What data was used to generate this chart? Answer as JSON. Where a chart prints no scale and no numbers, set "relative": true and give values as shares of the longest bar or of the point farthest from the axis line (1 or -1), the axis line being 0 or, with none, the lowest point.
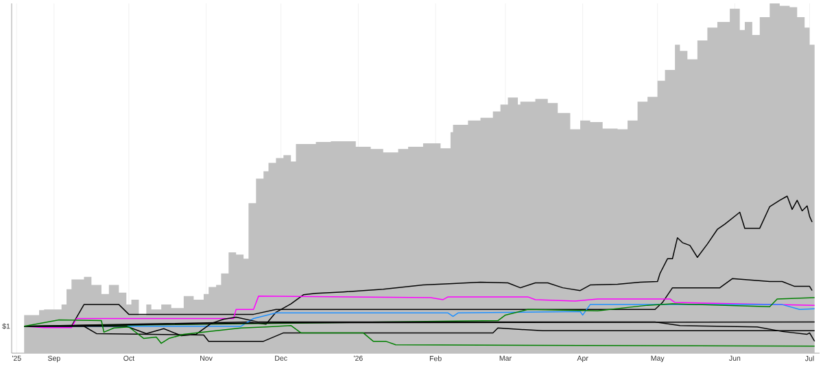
{
  "chart_data": {
    "type": "line",
    "relative": true,
    "grid": "x",
    "xlim": [
      "2025-08-15",
      "2026-07-05"
    ],
    "xticks": [
      {
        "value": "2025-08-17",
        "label": "'25"
      },
      {
        "value": "2025-09-01",
        "label": "Sep"
      },
      {
        "value": "2025-10-01",
        "label": "Oct"
      },
      {
        "value": "2025-11-01",
        "label": "Nov"
      },
      {
        "value": "2025-12-01",
        "label": "Dec"
      },
      {
        "value": "2026-01-01",
        "label": "'26"
      },
      {
        "value": "2026-02-01",
        "label": "Feb"
      },
      {
        "value": "2026-03-01",
        "label": "Mar"
      },
      {
        "value": "2026-04-01",
        "label": "Apr"
      },
      {
        "value": "2026-05-01",
        "label": "May"
      },
      {
        "value": "2026-06-01",
        "label": "Jun"
      },
      {
        "value": "2026-07-01",
        "label": "Jul"
      }
    ],
    "annotations": [
      "$1"
    ],
    "series": [
      {
        "type": "area",
        "color": "#c0c0c0",
        "x": [
          "2025-08-20",
          "2025-08-26",
          "2025-08-28",
          "2025-09-04",
          "2025-09-06",
          "2025-09-08",
          "2025-09-13",
          "2025-09-16",
          "2025-09-20",
          "2025-09-23",
          "2025-09-27",
          "2025-09-30",
          "2025-10-02",
          "2025-10-05",
          "2025-10-08",
          "2025-10-10",
          "2025-10-14",
          "2025-10-18",
          "2025-10-23",
          "2025-10-27",
          "2025-10-31",
          "2025-11-02",
          "2025-11-05",
          "2025-11-07",
          "2025-11-10",
          "2025-11-13",
          "2025-11-16",
          "2025-11-18",
          "2025-11-21",
          "2025-11-24",
          "2025-11-26",
          "2025-11-29",
          "2025-12-02",
          "2025-12-05",
          "2025-12-07",
          "2025-12-10",
          "2025-12-15",
          "2025-12-21",
          "2025-12-26",
          "2025-12-31",
          "2026-01-06",
          "2026-01-11",
          "2026-01-17",
          "2026-01-21",
          "2026-01-27",
          "2026-02-03",
          "2026-02-07",
          "2026-02-08",
          "2026-02-14",
          "2026-02-19",
          "2026-02-24",
          "2026-02-27",
          "2026-03-02",
          "2026-03-06",
          "2026-03-07",
          "2026-03-13",
          "2026-03-18",
          "2026-03-22",
          "2026-03-27",
          "2026-03-31",
          "2026-04-04",
          "2026-04-09",
          "2026-04-15",
          "2026-04-19",
          "2026-04-23",
          "2026-04-27",
          "2026-05-01",
          "2026-05-04",
          "2026-05-08",
          "2026-05-10",
          "2026-05-13",
          "2026-05-17",
          "2026-05-21",
          "2026-05-25",
          "2026-05-30",
          "2026-06-03",
          "2026-06-05",
          "2026-06-08",
          "2026-06-11",
          "2026-06-15",
          "2026-06-19",
          "2026-06-23",
          "2026-06-26",
          "2026-06-29",
          "2026-07-01",
          "2026-07-03"
        ],
        "values": [
          0.077,
          0.109,
          0.123,
          0.125,
          0.139,
          0.183,
          0.211,
          0.218,
          0.195,
          0.169,
          0.195,
          0.173,
          0.139,
          0.153,
          0.109,
          0.139,
          0.125,
          0.139,
          0.129,
          0.163,
          0.153,
          0.169,
          0.189,
          0.195,
          0.228,
          0.288,
          0.282,
          0.27,
          0.429,
          0.499,
          0.52,
          0.544,
          0.558,
          0.566,
          0.548,
          0.598,
          0.598,
          0.604,
          0.606,
          0.606,
          0.59,
          0.584,
          0.574,
          0.584,
          0.59,
          0.6,
          0.586,
          0.632,
          0.653,
          0.665,
          0.673,
          0.691,
          0.711,
          0.731,
          0.711,
          0.719,
          0.727,
          0.715,
          0.687,
          0.64,
          0.665,
          0.661,
          0.642,
          0.64,
          0.665,
          0.719,
          0.733,
          0.779,
          0.81,
          0.882,
          0.864,
          0.84,
          0.894,
          0.931,
          0.947,
          0.985,
          0.924,
          0.947,
          0.91,
          0.961,
          1,
          0.993,
          0.989,
          0.961,
          0.931,
          0.882
        ]
      },
      {
        "color": "#000000",
        "x": [
          "2025-08-20",
          "2025-11-18",
          "2025-11-25",
          "2025-11-29",
          "2025-12-05",
          "2025-12-10",
          "2025-12-15",
          "2025-12-26",
          "2026-01-11",
          "2026-01-27",
          "2026-02-08",
          "2026-02-19",
          "2026-03-02",
          "2026-03-07",
          "2026-03-13",
          "2026-03-18",
          "2026-03-24",
          "2026-03-31",
          "2026-04-04",
          "2026-04-15",
          "2026-04-24",
          "2026-05-01",
          "2026-05-02",
          "2026-05-05",
          "2026-05-07",
          "2026-05-09",
          "2026-05-11",
          "2026-05-14",
          "2026-05-17",
          "2026-05-21",
          "2026-05-25",
          "2026-05-28",
          "2026-06-03",
          "2026-06-05",
          "2026-06-11",
          "2026-06-15",
          "2026-06-19",
          "2026-06-22",
          "2026-06-24",
          "2026-06-26",
          "2026-06-28",
          "2026-06-30",
          "2026-07-01",
          "2026-07-02"
        ],
        "values": [
          0.077,
          0.089,
          0.083,
          0.117,
          0.141,
          0.167,
          0.171,
          0.175,
          0.183,
          0.195,
          0.199,
          0.203,
          0.201,
          0.187,
          0.201,
          0.201,
          0.187,
          0.179,
          0.195,
          0.197,
          0.203,
          0.205,
          0.228,
          0.27,
          0.27,
          0.33,
          0.316,
          0.308,
          0.274,
          0.312,
          0.354,
          0.369,
          0.403,
          0.357,
          0.357,
          0.419,
          0.437,
          0.449,
          0.411,
          0.437,
          0.407,
          0.421,
          0.391,
          0.375
        ]
      },
      {
        "color": "#000000",
        "x": [
          "2025-08-20",
          "2025-09-08",
          "2025-09-13",
          "2025-09-27",
          "2025-10-01",
          "2025-11-20",
          "2025-11-29",
          "2026-04-30",
          "2026-05-03",
          "2026-05-07",
          "2026-05-26",
          "2026-05-31",
          "2026-06-15",
          "2026-06-20",
          "2026-06-25",
          "2026-07-01",
          "2026-07-02"
        ],
        "values": [
          0.077,
          0.077,
          0.139,
          0.139,
          0.111,
          0.111,
          0.125,
          0.125,
          0.145,
          0.187,
          0.187,
          0.213,
          0.205,
          0.205,
          0.191,
          0.191,
          0.179
        ]
      },
      {
        "color": "#ff00ff",
        "x": [
          "2025-08-20",
          "2025-08-28",
          "2025-09-08",
          "2025-09-10",
          "2025-11-12",
          "2025-11-13",
          "2025-11-20",
          "2025-11-22",
          "2026-01-30",
          "2026-02-04",
          "2026-02-06",
          "2026-03-10",
          "2026-03-13",
          "2026-03-29",
          "2026-04-07",
          "2026-05-06",
          "2026-05-08",
          "2026-07-03"
        ],
        "values": [
          0.077,
          0.073,
          0.073,
          0.099,
          0.099,
          0.125,
          0.125,
          0.163,
          0.159,
          0.153,
          0.161,
          0.161,
          0.153,
          0.149,
          0.155,
          0.155,
          0.145,
          0.137
        ]
      },
      {
        "color": "#1e90ff",
        "x": [
          "2025-08-20",
          "2025-11-15",
          "2025-11-20",
          "2025-11-29",
          "2026-02-06",
          "2026-02-08",
          "2026-02-10",
          "2026-03-31",
          "2026-04-01",
          "2026-04-04",
          "2026-06-20",
          "2026-06-27",
          "2026-07-03"
        ],
        "values": [
          0.077,
          0.077,
          0.099,
          0.115,
          0.115,
          0.105,
          0.115,
          0.119,
          0.109,
          0.139,
          0.139,
          0.125,
          0.127
        ]
      },
      {
        "color": "#008000",
        "x": [
          "2025-08-20",
          "2026-01-11",
          "2026-02-26",
          "2026-03-01",
          "2026-03-10",
          "2026-04-07",
          "2026-04-27",
          "2026-05-07",
          "2026-06-15",
          "2026-06-18",
          "2026-07-03"
        ],
        "values": [
          0.077,
          0.089,
          0.093,
          0.109,
          0.125,
          0.121,
          0.137,
          0.141,
          0.133,
          0.155,
          0.159
        ]
      },
      {
        "color": "#000000",
        "x": [
          "2025-08-20",
          "2025-12-01",
          "2026-07-03"
        ],
        "values": [
          0.077,
          0.087,
          0.089
        ]
      },
      {
        "color": "#000000",
        "x": [
          "2025-08-20",
          "2025-09-30",
          "2025-10-08",
          "2025-10-15",
          "2025-10-22",
          "2025-10-28",
          "2025-11-03",
          "2025-11-08",
          "2025-11-13",
          "2025-11-22",
          "2026-04-30",
          "2026-05-10",
          "2026-06-10",
          "2026-06-20",
          "2026-06-30",
          "2026-07-01",
          "2026-07-03"
        ],
        "values": [
          0.077,
          0.077,
          0.056,
          0.07,
          0.05,
          0.054,
          0.085,
          0.097,
          0.103,
          0.089,
          0.089,
          0.079,
          0.075,
          0.062,
          0.054,
          0.058,
          0.034
        ]
      },
      {
        "color": "#000000",
        "x": [
          "2025-08-20",
          "2025-09-13",
          "2025-09-18",
          "2025-10-31",
          "2025-11-02",
          "2025-11-24",
          "2025-12-02",
          "2026-02-24",
          "2026-02-26",
          "2026-03-16",
          "2026-07-03"
        ],
        "values": [
          0.077,
          0.077,
          0.056,
          0.052,
          0.034,
          0.034,
          0.058,
          0.058,
          0.072,
          0.064,
          0.064
        ]
      },
      {
        "color": "#008000",
        "x": [
          "2025-08-20",
          "2025-09-03",
          "2025-09-20",
          "2025-09-21",
          "2025-09-25",
          "2025-10-01",
          "2025-10-07",
          "2025-10-12",
          "2025-10-14",
          "2025-10-17",
          "2025-10-23",
          "2025-11-05",
          "2025-11-15",
          "2025-11-25",
          "2025-12-05",
          "2025-12-09",
          "2026-01-03",
          "2026-01-07",
          "2026-01-12",
          "2026-01-16",
          "2026-07-03"
        ],
        "values": [
          0.077,
          0.095,
          0.093,
          0.06,
          0.072,
          0.075,
          0.042,
          0.046,
          0.028,
          0.042,
          0.054,
          0.064,
          0.072,
          0.075,
          0.079,
          0.058,
          0.058,
          0.034,
          0.034,
          0.024,
          0.02
        ]
      }
    ]
  }
}
